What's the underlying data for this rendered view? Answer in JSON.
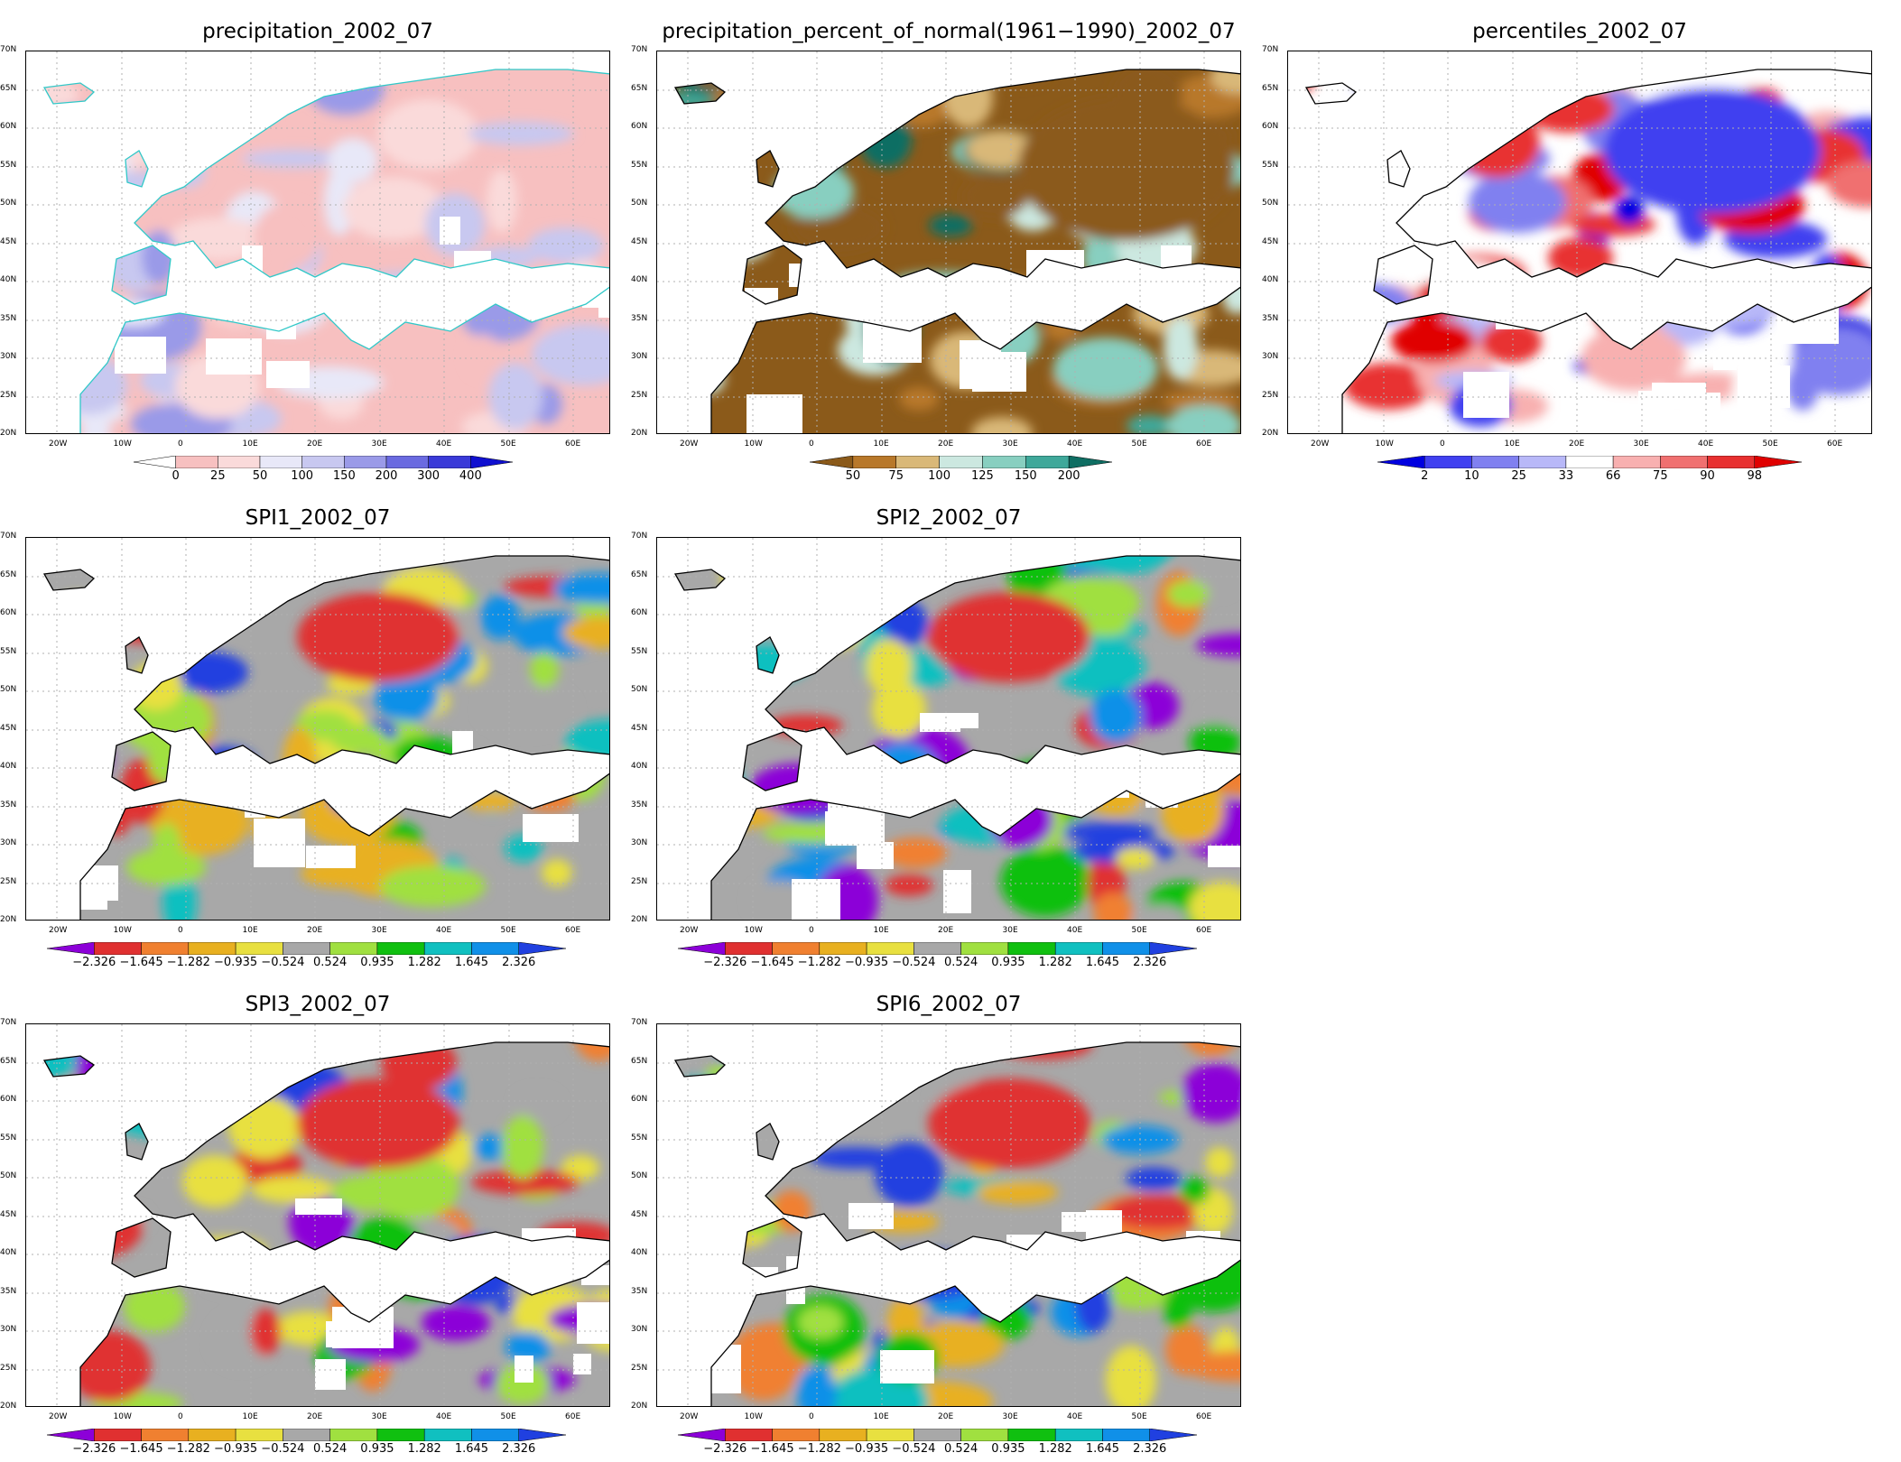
{
  "panels": [
    {
      "id": "p1",
      "title": "precipitation_2002_07",
      "scheme": "precip",
      "legend_labels": [
        "0",
        "25",
        "50",
        "100",
        "150",
        "200",
        "300",
        "400"
      ]
    },
    {
      "id": "p2",
      "title": "precipitation_percent_of_normal(1961−1990)_2002_07",
      "scheme": "pct",
      "legend_labels": [
        "50",
        "75",
        "100",
        "125",
        "150",
        "200"
      ]
    },
    {
      "id": "p3",
      "title": "percentiles_2002_07",
      "scheme": "percentile",
      "legend_labels": [
        "2",
        "10",
        "25",
        "33",
        "66",
        "75",
        "90",
        "98"
      ]
    },
    {
      "id": "p4",
      "title": "SPI1_2002_07",
      "scheme": "spi",
      "legend_labels": [
        "−2.326",
        "−1.645",
        "−1.282",
        "−0.935",
        "−0.524",
        "0.524",
        "0.935",
        "1.282",
        "1.645",
        "2.326"
      ]
    },
    {
      "id": "p5",
      "title": "SPI2_2002_07",
      "scheme": "spi",
      "legend_labels": [
        "−2.326",
        "−1.645",
        "−1.282",
        "−0.935",
        "−0.524",
        "0.524",
        "0.935",
        "1.282",
        "1.645",
        "2.326"
      ]
    },
    {
      "id": "p6",
      "title": "SPI3_2002_07",
      "scheme": "spi",
      "legend_labels": [
        "−2.326",
        "−1.645",
        "−1.282",
        "−0.935",
        "−0.524",
        "0.524",
        "0.935",
        "1.282",
        "1.645",
        "2.326"
      ]
    },
    {
      "id": "p7",
      "title": "SPI6_2002_07",
      "scheme": "spi",
      "legend_labels": [
        "−2.326",
        "−1.645",
        "−1.282",
        "−0.935",
        "−0.524",
        "0.524",
        "0.935",
        "1.282",
        "1.645",
        "2.326"
      ]
    }
  ],
  "axes": {
    "lat_labels": [
      "70N",
      "65N",
      "60N",
      "55N",
      "50N",
      "45N",
      "40N",
      "35N",
      "30N",
      "25N",
      "20N"
    ],
    "lon_labels": [
      "20W",
      "10W",
      "0",
      "10E",
      "20E",
      "30E",
      "40E",
      "50E",
      "60E"
    ]
  },
  "colors": {
    "precip": [
      "#ffffff",
      "#f7c0c0",
      "#fadada",
      "#e8e8f8",
      "#c8c8f0",
      "#9a9ae8",
      "#6a6ae0",
      "#3a3ad8",
      "#1010d0"
    ],
    "pct": [
      "#8b5a1a",
      "#b8782a",
      "#d9b878",
      "#cce8e0",
      "#88cfc0",
      "#3fa89a",
      "#0f6e63"
    ],
    "percentile": [
      "#0000e0",
      "#4040f0",
      "#8080f0",
      "#b8b8f8",
      "#ffffff",
      "#f8b0b0",
      "#f07070",
      "#e83030",
      "#e00000"
    ],
    "spi": [
      "#8c00d8",
      "#e03030",
      "#f08030",
      "#e8b020",
      "#e8e040",
      "#a8a8a8",
      "#a0e040",
      "#10c010",
      "#10c0c0",
      "#1090e8",
      "#2040e0"
    ]
  }
}
